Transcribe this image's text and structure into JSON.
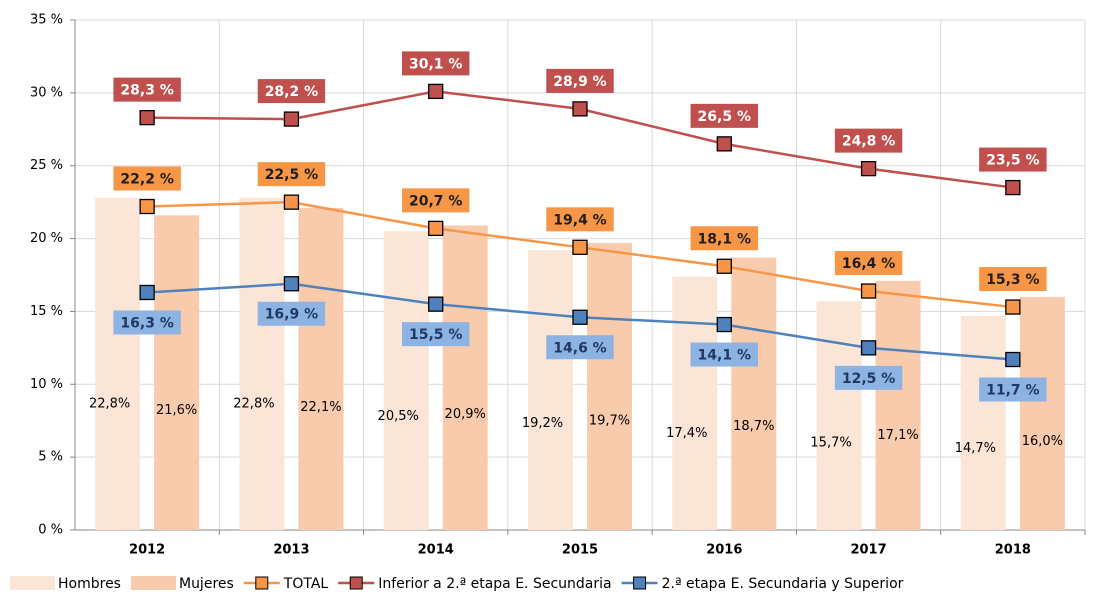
{
  "chart_data": {
    "type": "combo",
    "categories": [
      "2012",
      "2013",
      "2014",
      "2015",
      "2016",
      "2017",
      "2018"
    ],
    "ylim": [
      0,
      35
    ],
    "yticks": [
      {
        "value": 0,
        "label": "0 %"
      },
      {
        "value": 5,
        "label": "5 %"
      },
      {
        "value": 10,
        "label": "10 %"
      },
      {
        "value": 15,
        "label": "15 %"
      },
      {
        "value": 20,
        "label": "20 %"
      },
      {
        "value": 25,
        "label": "25 %"
      },
      {
        "value": 30,
        "label": "30 %"
      },
      {
        "value": 35,
        "label": "35 %"
      }
    ],
    "grid": true,
    "legend": "bottom",
    "series": [
      {
        "name": "Hombres",
        "type": "bar",
        "color": "#fbe5d6",
        "values": [
          22.8,
          22.8,
          20.5,
          19.2,
          17.4,
          15.7,
          14.7
        ],
        "value_labels": [
          "22,8%",
          "22,8%",
          "20,5%",
          "19,2%",
          "17,4%",
          "15,7%",
          "14,7%"
        ]
      },
      {
        "name": "Mujeres",
        "type": "bar",
        "color": "#f8cbad",
        "values": [
          21.6,
          22.1,
          20.9,
          19.7,
          18.7,
          17.1,
          16.0
        ],
        "value_labels": [
          "21,6%",
          "22,1%",
          "20,9%",
          "19,7%",
          "18,7%",
          "17,1%",
          "16,0%"
        ]
      },
      {
        "name": "TOTAL",
        "type": "line",
        "color": "#f79646",
        "values": [
          22.2,
          22.5,
          20.7,
          19.4,
          18.1,
          16.4,
          15.3
        ],
        "value_labels": [
          "22,2 %",
          "22,5 %",
          "20,7 %",
          "19,4 %",
          "18,1 %",
          "16,4 %",
          "15,3 %"
        ]
      },
      {
        "name": "Inferior a 2.ª etapa E. Secundaria",
        "type": "line",
        "color": "#c0504d",
        "values": [
          28.3,
          28.2,
          30.1,
          28.9,
          26.5,
          24.8,
          23.5
        ],
        "value_labels": [
          "28,3 %",
          "28,2 %",
          "30,1 %",
          "28,9 %",
          "26,5 %",
          "24,8 %",
          "23,5 %"
        ]
      },
      {
        "name": "2.ª etapa E. Secundaria y Superior",
        "type": "line",
        "color": "#4f81bd",
        "values": [
          16.3,
          16.9,
          15.5,
          14.6,
          14.1,
          12.5,
          11.7
        ],
        "value_labels": [
          "16,3 %",
          "16,9 %",
          "15,5 %",
          "14,6 %",
          "14,1 %",
          "12,5 %",
          "11,7 %"
        ]
      }
    ]
  }
}
